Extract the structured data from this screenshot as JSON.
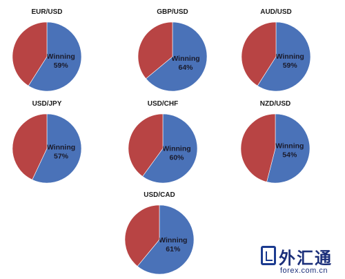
{
  "colors": {
    "winning": "#4a72b8",
    "losing": "#b84444"
  },
  "chart_data": [
    {
      "type": "pie",
      "title": "EUR/USD",
      "slices": [
        {
          "label": "Winning",
          "value": 59
        },
        {
          "label": "",
          "value": 41
        }
      ]
    },
    {
      "type": "pie",
      "title": "GBP/USD",
      "slices": [
        {
          "label": "Winning",
          "value": 64
        },
        {
          "label": "",
          "value": 36
        }
      ]
    },
    {
      "type": "pie",
      "title": "AUD/USD",
      "slices": [
        {
          "label": "Winning",
          "value": 59
        },
        {
          "label": "",
          "value": 41
        }
      ]
    },
    {
      "type": "pie",
      "title": "USD/JPY",
      "slices": [
        {
          "label": "Winning",
          "value": 57
        },
        {
          "label": "",
          "value": 43
        }
      ]
    },
    {
      "type": "pie",
      "title": "USD/CHF",
      "slices": [
        {
          "label": "Winning",
          "value": 60
        },
        {
          "label": "",
          "value": 40
        }
      ]
    },
    {
      "type": "pie",
      "title": "NZD/USD",
      "slices": [
        {
          "label": "Winning",
          "value": 54
        },
        {
          "label": "",
          "value": 46
        }
      ]
    },
    {
      "type": "pie",
      "title": "USD/CAD",
      "slices": [
        {
          "label": "Winning",
          "value": 61
        },
        {
          "label": "",
          "value": 39
        }
      ]
    }
  ],
  "watermark": {
    "text": "外汇通",
    "url": "forex.com.cn"
  }
}
